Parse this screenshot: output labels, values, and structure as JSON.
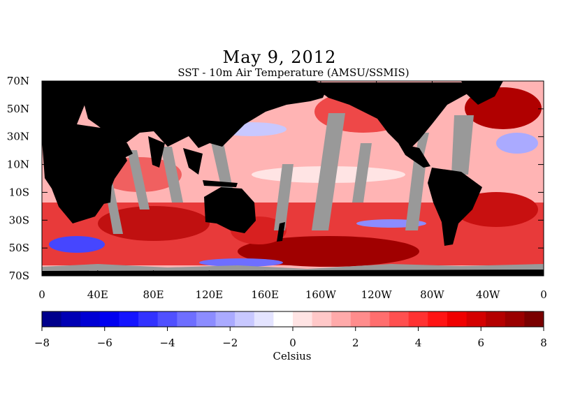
{
  "title": "May 9, 2012",
  "subtitle": "SST - 10m Air Temperature (AMSU/SSMIS)",
  "lat_labels": [
    "70N",
    "50N",
    "30N",
    "10N",
    "10S",
    "30S",
    "50S",
    "70S"
  ],
  "lon_labels": [
    "0",
    "40E",
    "80E",
    "120E",
    "160E",
    "160W",
    "120W",
    "80W",
    "40W",
    "0"
  ],
  "colorbar": {
    "min": -8,
    "max": 8,
    "tick_labels": [
      "−8",
      "−6",
      "−4",
      "−2",
      "0",
      "2",
      "4",
      "6",
      "8"
    ],
    "units": "Celsius",
    "colors": [
      "#00008c",
      "#0000b4",
      "#0000d4",
      "#0000f0",
      "#1414ff",
      "#3232ff",
      "#5050ff",
      "#6e6eff",
      "#8c8cff",
      "#aaaaff",
      "#c8c8ff",
      "#e4e4ff",
      "#ffffff",
      "#ffe4e4",
      "#ffc8c8",
      "#ffaaaa",
      "#ff8c8c",
      "#ff6e6e",
      "#ff5050",
      "#ff3232",
      "#ff1414",
      "#f00000",
      "#d40000",
      "#b40000",
      "#9a0000",
      "#7a0000"
    ]
  },
  "colors": {
    "land": "#000000",
    "no_data": "#999999"
  }
}
